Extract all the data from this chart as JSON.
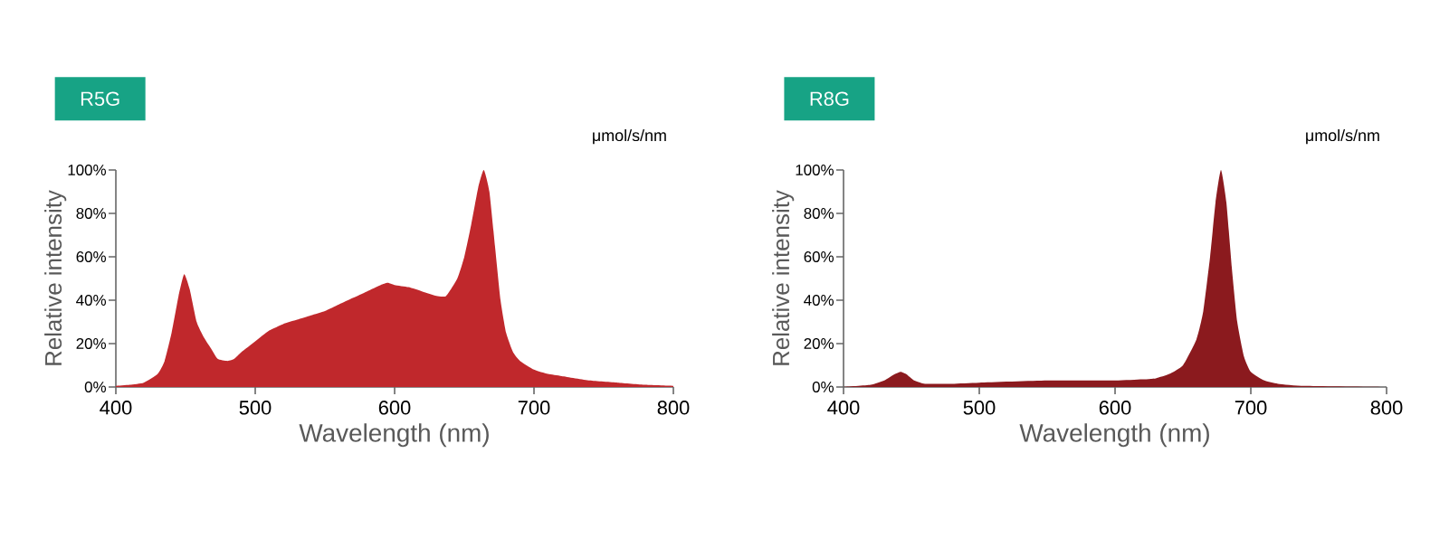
{
  "chart_data": [
    {
      "type": "area",
      "title": "R5G",
      "xlabel": "Wavelength (nm)",
      "ylabel": "Relative intensity",
      "annotations": [
        "μmol/s/nm"
      ],
      "x": [
        400,
        410,
        420,
        430,
        435,
        440,
        445,
        449,
        453,
        458,
        463,
        468,
        473,
        480,
        485,
        490,
        500,
        510,
        520,
        530,
        540,
        550,
        560,
        570,
        580,
        590,
        595,
        600,
        610,
        620,
        630,
        637,
        645,
        650,
        655,
        660,
        664,
        668,
        672,
        676,
        680,
        685,
        690,
        700,
        710,
        720,
        740,
        760,
        780,
        800
      ],
      "series": [
        {
          "color": "#c0282c",
          "values": [
            0.5,
            1,
            2,
            6,
            12,
            25,
            42,
            52,
            45,
            30,
            23,
            18,
            13,
            12,
            13,
            16,
            21,
            26,
            29,
            31,
            33,
            35,
            38,
            41,
            44,
            47,
            48,
            47,
            46,
            44,
            42,
            42,
            50,
            60,
            75,
            92,
            100,
            90,
            65,
            40,
            25,
            16,
            12,
            8,
            6,
            5,
            3,
            2,
            1,
            0.5
          ]
        }
      ],
      "xlim": [
        400,
        800
      ],
      "ylim": [
        0,
        100
      ],
      "xticks": [
        400,
        500,
        600,
        700,
        800
      ],
      "yticks": [
        {
          "value": 0,
          "label": "0%"
        },
        {
          "value": 20,
          "label": "20%"
        },
        {
          "value": 40,
          "label": "40%"
        },
        {
          "value": 60,
          "label": "60%"
        },
        {
          "value": 80,
          "label": "80%"
        },
        {
          "value": 100,
          "label": "100%"
        }
      ]
    },
    {
      "type": "area",
      "title": "R8G",
      "xlabel": "Wavelength (nm)",
      "ylabel": "Relative intensity",
      "annotations": [
        "μmol/s/nm"
      ],
      "x": [
        400,
        420,
        430,
        438,
        442,
        446,
        452,
        460,
        480,
        500,
        550,
        600,
        620,
        630,
        640,
        650,
        660,
        665,
        670,
        674,
        678,
        682,
        686,
        690,
        695,
        700,
        710,
        720,
        740,
        800
      ],
      "series": [
        {
          "color": "#8b1a1e",
          "values": [
            0,
            1,
            3,
            6,
            7,
            6,
            3,
            1.5,
            1.5,
            2,
            3,
            3,
            3.5,
            4,
            6,
            10,
            22,
            35,
            60,
            85,
            100,
            85,
            55,
            30,
            14,
            7,
            3,
            1.5,
            0.5,
            0
          ]
        }
      ],
      "xlim": [
        400,
        800
      ],
      "ylim": [
        0,
        100
      ],
      "xticks": [
        400,
        500,
        600,
        700,
        800
      ],
      "yticks": [
        {
          "value": 0,
          "label": "0%"
        },
        {
          "value": 20,
          "label": "20%"
        },
        {
          "value": 40,
          "label": "40%"
        },
        {
          "value": 60,
          "label": "60%"
        },
        {
          "value": 80,
          "label": "80%"
        },
        {
          "value": 100,
          "label": "100%"
        }
      ]
    }
  ]
}
